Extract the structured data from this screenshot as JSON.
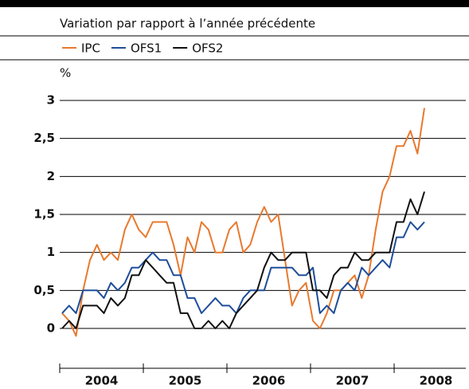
{
  "chart_data": {
    "type": "line",
    "subtitle": "Variation par rapport à l’année précédente",
    "y_unit": "%",
    "categories": [
      null,
      null,
      null,
      null,
      null,
      null,
      null,
      null,
      null,
      null,
      null,
      null,
      null,
      null,
      null,
      null,
      null,
      null,
      null,
      null,
      null,
      null,
      null,
      null,
      null,
      null,
      null,
      null,
      null,
      null,
      null,
      null,
      null,
      null,
      null,
      null,
      null,
      null,
      null,
      null,
      null,
      null,
      null,
      null,
      null,
      null,
      null,
      null,
      null,
      null,
      null,
      null,
      null
    ],
    "year_labels": [
      "2004",
      "2005",
      "2006",
      "2007",
      "2008"
    ],
    "series": [
      {
        "name": "IPC",
        "color": "#e8792e",
        "values": [
          0.2,
          0.1,
          -0.1,
          0.5,
          0.9,
          1.1,
          0.9,
          1.0,
          0.9,
          1.3,
          1.5,
          1.3,
          1.2,
          1.4,
          1.4,
          1.4,
          1.1,
          0.7,
          1.2,
          1.0,
          1.4,
          1.3,
          1.0,
          1.0,
          1.3,
          1.4,
          1.0,
          1.1,
          1.4,
          1.6,
          1.4,
          1.5,
          0.9,
          0.3,
          0.5,
          0.6,
          0.1,
          0.0,
          0.2,
          0.5,
          0.5,
          0.6,
          0.7,
          0.4,
          0.7,
          1.3,
          1.8,
          2.0,
          2.4,
          2.4,
          2.6,
          2.3,
          2.9
        ]
      },
      {
        "name": "OFS1",
        "color": "#1f4e9a",
        "values": [
          0.2,
          0.3,
          0.2,
          0.5,
          0.5,
          0.5,
          0.4,
          0.6,
          0.5,
          0.6,
          0.8,
          0.8,
          0.9,
          1.0,
          0.9,
          0.9,
          0.7,
          0.7,
          0.4,
          0.4,
          0.2,
          0.3,
          0.4,
          0.3,
          0.3,
          0.2,
          0.4,
          0.5,
          0.5,
          0.5,
          0.8,
          0.8,
          0.8,
          0.8,
          0.7,
          0.7,
          0.8,
          0.2,
          0.3,
          0.2,
          0.5,
          0.6,
          0.5,
          0.8,
          0.7,
          0.8,
          0.9,
          0.8,
          1.2,
          1.2,
          1.4,
          1.3,
          1.4
        ]
      },
      {
        "name": "OFS2",
        "color": "#111111",
        "values": [
          0.0,
          0.1,
          0.0,
          0.3,
          0.3,
          0.3,
          0.2,
          0.4,
          0.3,
          0.4,
          0.7,
          0.7,
          0.9,
          0.8,
          0.7,
          0.6,
          0.6,
          0.2,
          0.2,
          0.0,
          0.0,
          0.1,
          0.0,
          0.1,
          0.0,
          0.2,
          0.3,
          0.4,
          0.5,
          0.8,
          1.0,
          0.9,
          0.9,
          1.0,
          1.0,
          1.0,
          0.5,
          0.5,
          0.4,
          0.7,
          0.8,
          0.8,
          1.0,
          0.9,
          0.9,
          1.0,
          1.0,
          1.0,
          1.4,
          1.4,
          1.7,
          1.5,
          1.8
        ]
      }
    ],
    "ylim": [
      -0.5,
      3.2
    ],
    "yticks": [
      0,
      {
        "value": 0.5,
        "label": "0,5"
      },
      1,
      {
        "value": 1.5,
        "label": "1,5"
      },
      2,
      {
        "value": 2.5,
        "label": "2,5"
      },
      3
    ],
    "grid": true
  }
}
